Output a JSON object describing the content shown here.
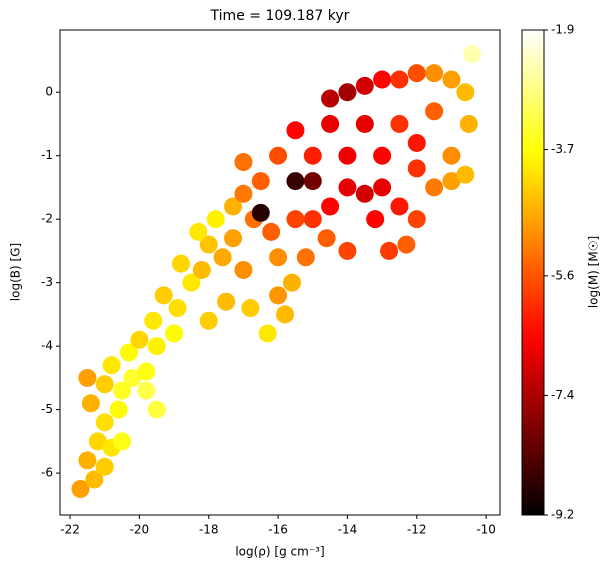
{
  "chart_data": {
    "type": "scatter",
    "title": "Time = 109.187 kyr",
    "xlabel": "log(ρ) [g cm⁻³]",
    "ylabel": "log(B) [G]",
    "clabel": "log(M) [M☉]",
    "colormap": "hot",
    "xlim": [
      -22.29,
      -9.6
    ],
    "xticks": [
      -22,
      -20,
      -18,
      -16,
      -14,
      -12,
      -10
    ],
    "ylim": [
      -6.66,
      0.98
    ],
    "yticks": [
      -6,
      -5,
      -4,
      -3,
      -2,
      -1,
      0
    ],
    "clim": [
      -9.2,
      -1.9
    ],
    "cticks": [
      -9.2,
      -7.4,
      -5.6,
      -3.7,
      -1.9
    ],
    "x": [
      -21.7,
      -21.3,
      -21.0,
      -21.5,
      -21.2,
      -20.8,
      -21.0,
      -20.6,
      -21.4,
      -21.5,
      -21.0,
      -20.5,
      -20.2,
      -20.8,
      -20.3,
      -19.8,
      -19.5,
      -20.0,
      -19.6,
      -19.0,
      -18.9,
      -19.3,
      -18.5,
      -18.8,
      -18.2,
      -18.0,
      -17.6,
      -18.3,
      -17.8,
      -17.3,
      -17.0,
      -16.8,
      -16.3,
      -17.5,
      -18.0,
      -17.3,
      -17.0,
      -16.5,
      -16.7,
      -16.2,
      -16.0,
      -15.6,
      -15.2,
      -15.5,
      -15.0,
      -14.6,
      -15.5,
      -15.0,
      -16.5,
      -14.5,
      -14.0,
      -13.5,
      -13.0,
      -13.2,
      -12.5,
      -12.0,
      -12.3,
      -11.5,
      -11.0,
      -10.6,
      -11.0,
      -12.0,
      -13.0,
      -14.0,
      -15.0,
      -16.0,
      -15.5,
      -14.5,
      -14.5,
      -14.0,
      -13.5,
      -13.0,
      -12.5,
      -12.0,
      -11.5,
      -11.0,
      -10.6,
      -10.5,
      -11.5,
      -12.5,
      -13.5,
      -12.0,
      -14.0,
      -16.0,
      -17.0,
      -12.8,
      -15.8,
      -19.5,
      -20.5,
      -19.8,
      -10.4
    ],
    "y": [
      -6.25,
      -6.1,
      -5.9,
      -5.8,
      -5.5,
      -5.6,
      -5.2,
      -5.0,
      -4.9,
      -4.5,
      -4.6,
      -4.7,
      -4.5,
      -4.3,
      -4.1,
      -4.4,
      -4.0,
      -3.9,
      -3.6,
      -3.8,
      -3.4,
      -3.2,
      -3.0,
      -2.7,
      -2.8,
      -2.4,
      -2.6,
      -2.2,
      -2.0,
      -2.3,
      -2.8,
      -3.4,
      -3.8,
      -3.3,
      -3.6,
      -1.8,
      -1.6,
      -1.4,
      -2.0,
      -2.2,
      -2.6,
      -3.0,
      -2.6,
      -2.0,
      -2.0,
      -2.3,
      -1.4,
      -1.4,
      -1.9,
      -1.8,
      -1.5,
      -1.6,
      -1.5,
      -2.0,
      -1.8,
      -2.0,
      -2.4,
      -1.5,
      -1.4,
      -1.3,
      -1.0,
      -1.2,
      -1.0,
      -1.0,
      -1.0,
      -1.0,
      -0.6,
      -0.5,
      -0.1,
      0.0,
      0.1,
      0.2,
      0.2,
      0.3,
      0.3,
      0.2,
      0.0,
      -0.5,
      -0.3,
      -0.5,
      -0.5,
      -0.8,
      -2.5,
      -3.2,
      -1.1,
      -2.5,
      -3.5,
      -5.0,
      -5.5,
      -4.7,
      0.6
    ],
    "c": [
      -4.8,
      -4.5,
      -4.3,
      -4.6,
      -4.2,
      -4.0,
      -4.1,
      -3.8,
      -4.6,
      -4.8,
      -4.3,
      -3.5,
      -3.4,
      -4.0,
      -3.8,
      -3.6,
      -3.9,
      -4.2,
      -4.0,
      -3.8,
      -4.1,
      -4.3,
      -4.0,
      -4.2,
      -4.5,
      -4.4,
      -4.7,
      -4.0,
      -3.9,
      -4.8,
      -5.0,
      -4.3,
      -4.0,
      -4.5,
      -4.3,
      -4.6,
      -5.2,
      -5.5,
      -5.3,
      -5.5,
      -5.0,
      -4.6,
      -5.3,
      -5.8,
      -6.0,
      -5.5,
      -8.6,
      -8.0,
      -8.8,
      -6.5,
      -6.8,
      -7.0,
      -6.8,
      -6.5,
      -6.3,
      -5.8,
      -5.5,
      -5.2,
      -4.8,
      -4.5,
      -5.0,
      -6.0,
      -6.5,
      -6.7,
      -6.2,
      -5.7,
      -6.5,
      -6.8,
      -7.3,
      -7.5,
      -7.0,
      -6.5,
      -6.0,
      -5.7,
      -5.0,
      -4.8,
      -4.5,
      -4.6,
      -5.5,
      -6.0,
      -6.8,
      -6.3,
      -5.8,
      -4.9,
      -5.3,
      -5.9,
      -4.5,
      -3.3,
      -3.6,
      -3.2,
      -2.5
    ]
  }
}
